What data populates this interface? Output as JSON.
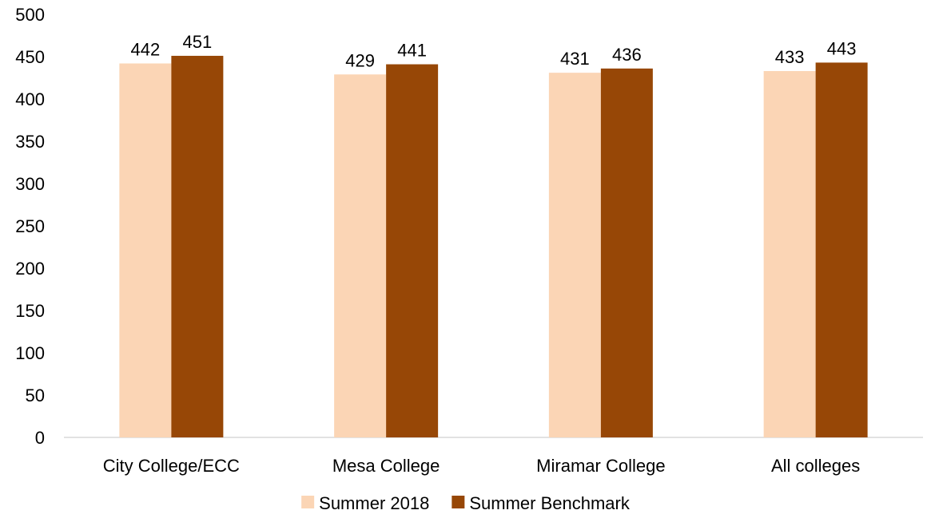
{
  "chart_data": {
    "type": "bar",
    "title": "",
    "xlabel": "",
    "ylabel": "",
    "categories": [
      "City College/ECC",
      "Mesa College",
      "Miramar College",
      "All colleges"
    ],
    "series": [
      {
        "name": "Summer 2018",
        "values": [
          442,
          429,
          431,
          433
        ],
        "color": "#FBD5B5"
      },
      {
        "name": "Summer Benchmark",
        "values": [
          451,
          441,
          436,
          443
        ],
        "color": "#974706"
      }
    ],
    "ylim": [
      0,
      500
    ],
    "yticks": [
      0,
      50,
      100,
      150,
      200,
      250,
      300,
      350,
      400,
      450,
      500
    ],
    "grid": false,
    "legend_position": "bottom",
    "axis_color": "#D9D9D9"
  }
}
